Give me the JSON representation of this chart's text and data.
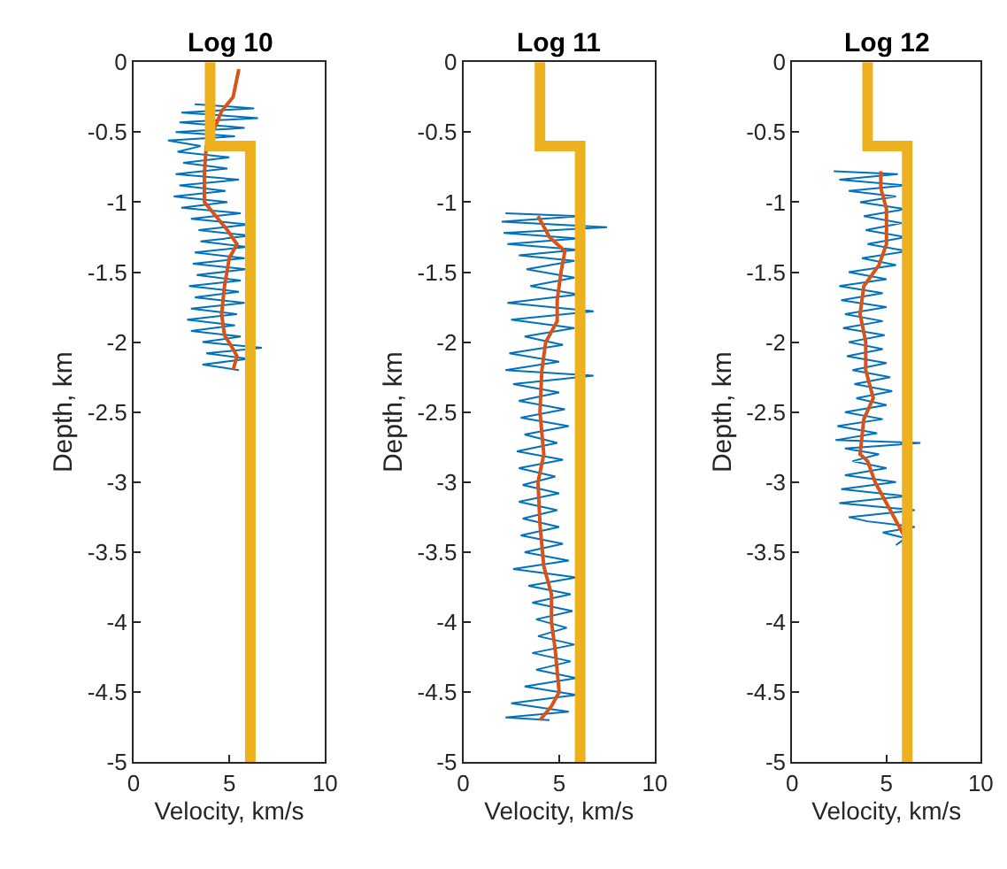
{
  "chart_data": [
    {
      "type": "line",
      "title": "Log 10",
      "xlabel": "Velocity, km/s",
      "ylabel": "Depth, km",
      "xlim": [
        0,
        10
      ],
      "xticks": [
        0,
        5,
        10
      ],
      "ylim": [
        -5,
        0
      ],
      "yticks": [
        -5,
        -4.5,
        -4,
        -3.5,
        -3,
        -2.5,
        -2,
        -1.5,
        -1,
        -0.5,
        0
      ],
      "marker": "none",
      "line_style": "solid",
      "series": [
        {
          "color": "#0072bd",
          "x": [
            3.2,
            6.3,
            2.5,
            6.5,
            2.4,
            5.8,
            2.2,
            5.3,
            1.8,
            3.5,
            2.3,
            5.0,
            2.6,
            4.9,
            2.2,
            5.5,
            2.4,
            4.8,
            2.1,
            4.9,
            2.5,
            5.6,
            3.0,
            6.0,
            3.4,
            6.1,
            3.5,
            5.9,
            3.2,
            5.8,
            3.1,
            5.9,
            3.3,
            5.6,
            2.9,
            5.5,
            3.2,
            5.8,
            3.0,
            5.4,
            2.8,
            5.3,
            3.0,
            5.6,
            3.6,
            6.7,
            3.8,
            6.0,
            3.6,
            5.5
          ],
          "values": [
            -0.3,
            -0.33,
            -0.36,
            -0.4,
            -0.43,
            -0.47,
            -0.5,
            -0.53,
            -0.56,
            -0.6,
            -0.64,
            -0.68,
            -0.72,
            -0.76,
            -0.8,
            -0.84,
            -0.88,
            -0.92,
            -0.96,
            -1.0,
            -1.04,
            -1.08,
            -1.12,
            -1.16,
            -1.2,
            -1.24,
            -1.28,
            -1.32,
            -1.36,
            -1.4,
            -1.44,
            -1.48,
            -1.52,
            -1.56,
            -1.6,
            -1.64,
            -1.68,
            -1.72,
            -1.76,
            -1.8,
            -1.84,
            -1.88,
            -1.92,
            -1.96,
            -2.0,
            -2.04,
            -2.08,
            -2.12,
            -2.16,
            -2.2
          ]
        },
        {
          "color": "#d95319",
          "x": [
            5.5,
            5.2,
            4.6,
            4.3,
            3.8,
            3.7,
            3.7,
            4.0,
            4.9,
            5.4,
            5.0,
            4.75,
            4.6,
            4.75,
            5.2,
            5.4,
            5.2
          ],
          "values": [
            -0.05,
            -0.25,
            -0.35,
            -0.45,
            -0.6,
            -0.8,
            -1.0,
            -1.05,
            -1.2,
            -1.3,
            -1.4,
            -1.6,
            -1.8,
            -1.95,
            -2.05,
            -2.1,
            -2.2
          ]
        },
        {
          "color": "#edb120",
          "x": [
            4.0,
            4.0,
            6.1,
            6.1
          ],
          "values": [
            0,
            -0.6,
            -0.6,
            -5
          ]
        }
      ]
    },
    {
      "type": "line",
      "title": "Log 11",
      "xlabel": "Velocity, km/s",
      "ylabel": "Depth, km",
      "xlim": [
        0,
        10
      ],
      "xticks": [
        0,
        5,
        10
      ],
      "ylim": [
        -5,
        0
      ],
      "yticks": [
        -5,
        -4.5,
        -4,
        -3.5,
        -3,
        -2.5,
        -2,
        -1.5,
        -1,
        -0.5,
        0
      ],
      "marker": "none",
      "line_style": "solid",
      "series": [
        {
          "color": "#0072bd",
          "x": [
            2.2,
            6.1,
            2.0,
            7.5,
            2.1,
            6.0,
            2.3,
            6.0,
            2.9,
            5.8,
            3.3,
            5.8,
            3.5,
            6.0,
            2.3,
            6.8,
            2.5,
            5.8,
            3.2,
            5.2,
            2.4,
            5.0,
            2.2,
            6.8,
            2.6,
            5.0,
            2.9,
            5.3,
            3.0,
            5.5,
            3.2,
            4.9,
            2.8,
            5.2,
            2.9,
            4.8,
            3.1,
            5.0,
            2.9,
            4.9,
            3.1,
            5.0,
            3.0,
            5.2,
            3.2,
            5.5,
            2.6,
            5.9,
            3.4,
            5.6,
            3.6,
            5.7,
            3.8,
            5.4,
            3.9,
            5.8,
            3.6,
            5.6,
            3.8,
            5.9,
            3.2,
            5.9,
            2.5,
            5.5,
            2.2,
            4.5
          ],
          "values": [
            -1.08,
            -1.1,
            -1.14,
            -1.18,
            -1.22,
            -1.26,
            -1.3,
            -1.34,
            -1.38,
            -1.42,
            -1.48,
            -1.54,
            -1.6,
            -1.66,
            -1.72,
            -1.78,
            -1.84,
            -1.9,
            -1.96,
            -2.02,
            -2.08,
            -2.14,
            -2.2,
            -2.24,
            -2.3,
            -2.36,
            -2.42,
            -2.48,
            -2.54,
            -2.6,
            -2.66,
            -2.72,
            -2.78,
            -2.84,
            -2.9,
            -2.96,
            -3.02,
            -3.08,
            -3.14,
            -3.2,
            -3.26,
            -3.32,
            -3.38,
            -3.44,
            -3.5,
            -3.56,
            -3.62,
            -3.68,
            -3.74,
            -3.8,
            -3.86,
            -3.92,
            -3.98,
            -4.04,
            -4.1,
            -4.16,
            -4.22,
            -4.28,
            -4.34,
            -4.4,
            -4.46,
            -4.52,
            -4.58,
            -4.64,
            -4.68,
            -4.7
          ]
        },
        {
          "color": "#d95319",
          "x": [
            3.9,
            4.5,
            5.3,
            5.1,
            4.9,
            4.9,
            4.3,
            4.1,
            4.0,
            4.2,
            3.9,
            4.0,
            4.2,
            4.6,
            4.6,
            4.8,
            5.0,
            4.6,
            4.0
          ],
          "values": [
            -1.1,
            -1.25,
            -1.35,
            -1.5,
            -1.7,
            -1.85,
            -2.0,
            -2.2,
            -2.5,
            -2.8,
            -3.0,
            -3.3,
            -3.6,
            -3.8,
            -4.0,
            -4.2,
            -4.5,
            -4.6,
            -4.7
          ]
        },
        {
          "color": "#edb120",
          "x": [
            4.0,
            4.0,
            6.1,
            6.1
          ],
          "values": [
            0,
            -0.6,
            -0.6,
            -5
          ]
        }
      ]
    },
    {
      "type": "line",
      "title": "Log 12",
      "xlabel": "Velocity, km/s",
      "ylabel": "Depth, km",
      "xlim": [
        0,
        10
      ],
      "xticks": [
        0,
        5,
        10
      ],
      "ylim": [
        -5,
        0
      ],
      "yticks": [
        -5,
        -4.5,
        -4,
        -3.5,
        -3,
        -2.5,
        -2,
        -1.5,
        -1,
        -0.5,
        0
      ],
      "marker": "none",
      "line_style": "solid",
      "series": [
        {
          "color": "#0072bd",
          "x": [
            2.2,
            5.6,
            2.5,
            6.0,
            3.0,
            5.5,
            3.6,
            6.0,
            3.8,
            5.8,
            3.9,
            6.0,
            4.0,
            6.1,
            3.7,
            5.5,
            3.0,
            5.0,
            2.5,
            4.8,
            2.6,
            5.0,
            2.8,
            4.8,
            2.7,
            4.9,
            3.0,
            4.8,
            2.9,
            5.0,
            3.2,
            5.2,
            3.3,
            5.3,
            3.4,
            5.0,
            2.8,
            4.8,
            2.4,
            4.5,
            2.3,
            6.8,
            2.8,
            4.6,
            3.2,
            5.0,
            2.8,
            5.5,
            2.6,
            6.0,
            2.5,
            6.5,
            3.0,
            4.0,
            6.5,
            4.8,
            6.0,
            5.5
          ],
          "values": [
            -0.78,
            -0.8,
            -0.84,
            -0.88,
            -0.92,
            -0.96,
            -1.0,
            -1.05,
            -1.1,
            -1.15,
            -1.2,
            -1.25,
            -1.3,
            -1.35,
            -1.4,
            -1.45,
            -1.5,
            -1.55,
            -1.6,
            -1.65,
            -1.7,
            -1.75,
            -1.8,
            -1.85,
            -1.9,
            -1.95,
            -2.0,
            -2.05,
            -2.1,
            -2.15,
            -2.2,
            -2.25,
            -2.3,
            -2.35,
            -2.4,
            -2.45,
            -2.5,
            -2.55,
            -2.6,
            -2.65,
            -2.7,
            -2.72,
            -2.76,
            -2.8,
            -2.85,
            -2.9,
            -2.95,
            -3.0,
            -3.05,
            -3.1,
            -3.15,
            -3.2,
            -3.25,
            -3.28,
            -3.32,
            -3.36,
            -3.4,
            -3.45
          ]
        },
        {
          "color": "#d95319",
          "x": [
            4.7,
            4.7,
            5.0,
            5.0,
            4.6,
            3.8,
            3.6,
            3.9,
            3.9,
            4.3,
            3.8,
            3.6,
            4.0,
            4.4,
            5.2,
            6.0
          ],
          "values": [
            -0.78,
            -0.9,
            -1.05,
            -1.3,
            -1.45,
            -1.6,
            -1.8,
            -2.0,
            -2.2,
            -2.4,
            -2.55,
            -2.8,
            -2.85,
            -3.0,
            -3.2,
            -3.4
          ]
        },
        {
          "color": "#edb120",
          "x": [
            4.0,
            4.0,
            6.1,
            6.1
          ],
          "values": [
            0,
            -0.6,
            -0.6,
            -5
          ]
        }
      ]
    }
  ]
}
